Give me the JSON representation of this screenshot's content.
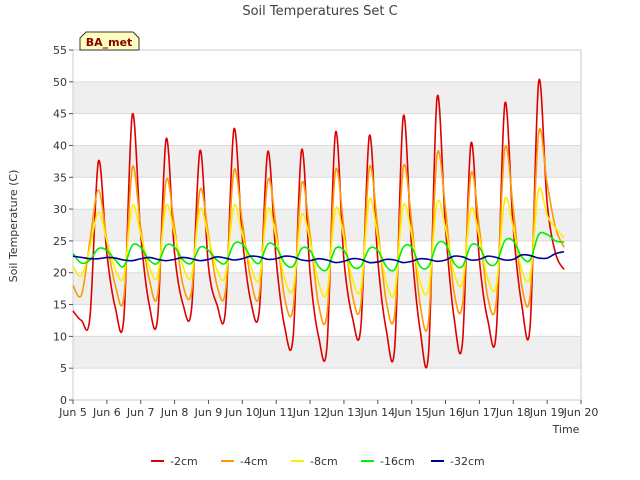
{
  "chart_data": {
    "type": "line",
    "title": "Soil Temperatures Set C",
    "badge": "BA_met",
    "xlabel": "Time",
    "ylabel": "Soil Temperature (C)",
    "xlim": [
      5,
      20
    ],
    "ylim": [
      0,
      55
    ],
    "x_ticks": [
      {
        "v": 5,
        "label": "Jun 5"
      },
      {
        "v": 6,
        "label": "Jun 6"
      },
      {
        "v": 7,
        "label": "Jun 7"
      },
      {
        "v": 8,
        "label": "Jun 8"
      },
      {
        "v": 9,
        "label": "Jun 9"
      },
      {
        "v": 10,
        "label": "Jun 10"
      },
      {
        "v": 11,
        "label": "Jun 11"
      },
      {
        "v": 12,
        "label": "Jun 12"
      },
      {
        "v": 13,
        "label": "Jun 13"
      },
      {
        "v": 14,
        "label": "Jun 14"
      },
      {
        "v": 15,
        "label": "Jun 15"
      },
      {
        "v": 16,
        "label": "Jun 16"
      },
      {
        "v": 17,
        "label": "Jun 17"
      },
      {
        "v": 18,
        "label": "Jun 18"
      },
      {
        "v": 19,
        "label": "Jun 19"
      },
      {
        "v": 20,
        "label": "Jun 20"
      }
    ],
    "y_ticks": [
      0,
      5,
      10,
      15,
      20,
      25,
      30,
      35,
      40,
      45,
      50,
      55
    ],
    "grid": true,
    "legend_position": "bottom",
    "x": [
      5.0,
      5.25,
      5.5,
      5.75,
      6.0,
      6.25,
      6.5,
      6.75,
      7.0,
      7.25,
      7.5,
      7.75,
      8.0,
      8.25,
      8.5,
      8.75,
      9.0,
      9.25,
      9.5,
      9.75,
      10.0,
      10.25,
      10.5,
      10.75,
      11.0,
      11.25,
      11.5,
      11.75,
      12.0,
      12.25,
      12.5,
      12.75,
      13.0,
      13.25,
      13.5,
      13.75,
      14.0,
      14.25,
      14.5,
      14.75,
      15.0,
      15.25,
      15.5,
      15.75,
      16.0,
      16.25,
      16.5,
      16.75,
      17.0,
      17.25,
      17.5,
      17.75,
      18.0,
      18.25,
      18.5,
      18.75,
      19.0,
      19.25,
      19.5
    ],
    "series": [
      {
        "name": "-2cm",
        "color": "#dd0000",
        "values": [
          14.0,
          12.5,
          13.0,
          37.5,
          23.0,
          14.5,
          12.8,
          44.8,
          26.0,
          15.0,
          13.0,
          41.0,
          23.0,
          15.0,
          14.3,
          39.2,
          21.0,
          15.0,
          14.0,
          42.5,
          25.5,
          15.5,
          14.0,
          39.0,
          22.0,
          11.5,
          9.9,
          39.3,
          20.0,
          10.0,
          8.5,
          42.0,
          22.0,
          13.0,
          11.5,
          41.5,
          22.0,
          11.0,
          8.3,
          44.5,
          24.0,
          11.0,
          7.5,
          47.5,
          27.0,
          13.0,
          9.0,
          40.3,
          22.0,
          12.5,
          10.8,
          46.5,
          27.0,
          15.0,
          11.8,
          50.0,
          31.0,
          23.0,
          20.5
        ]
      },
      {
        "name": "-4cm",
        "color": "#ff9900",
        "values": [
          18.0,
          16.5,
          25.0,
          33.0,
          25.0,
          18.0,
          16.0,
          36.5,
          27.0,
          19.0,
          16.5,
          34.5,
          27.0,
          18.0,
          17.0,
          33.0,
          26.0,
          18.0,
          17.0,
          36.0,
          28.0,
          19.0,
          16.5,
          34.5,
          27.0,
          16.0,
          14.5,
          34.0,
          26.0,
          15.0,
          13.5,
          36.0,
          27.0,
          16.5,
          15.0,
          36.5,
          27.0,
          15.5,
          13.5,
          36.5,
          28.0,
          15.0,
          12.5,
          38.5,
          30.0,
          17.0,
          15.0,
          35.5,
          27.0,
          16.0,
          15.5,
          39.5,
          30.0,
          18.0,
          16.5,
          42.0,
          34.0,
          27.0,
          24.0
        ]
      },
      {
        "name": "-8cm",
        "color": "#ffee00",
        "values": [
          21.0,
          19.5,
          24.0,
          29.5,
          25.0,
          20.5,
          19.5,
          30.5,
          26.0,
          21.0,
          19.5,
          30.5,
          26.0,
          21.0,
          19.5,
          30.0,
          25.5,
          20.5,
          19.5,
          30.5,
          26.0,
          21.0,
          19.0,
          30.0,
          25.5,
          19.0,
          17.5,
          29.0,
          25.0,
          18.5,
          17.0,
          30.0,
          25.5,
          19.0,
          17.5,
          31.5,
          25.5,
          18.5,
          17.0,
          30.5,
          26.0,
          18.5,
          17.5,
          31.0,
          27.0,
          20.0,
          18.5,
          30.0,
          25.5,
          19.0,
          18.0,
          31.5,
          27.0,
          20.5,
          19.5,
          33.0,
          29.0,
          27.0,
          25.5
        ]
      },
      {
        "name": "-16cm",
        "color": "#00ee00",
        "values": [
          23.0,
          21.5,
          22.0,
          23.8,
          23.5,
          22.0,
          21.0,
          24.3,
          24.0,
          22.0,
          21.5,
          24.3,
          24.0,
          22.0,
          21.5,
          24.0,
          23.5,
          22.0,
          21.5,
          24.5,
          24.5,
          22.5,
          21.5,
          24.5,
          24.0,
          21.5,
          21.0,
          23.8,
          23.5,
          21.0,
          20.5,
          23.8,
          23.5,
          21.0,
          21.0,
          23.8,
          23.5,
          21.0,
          20.5,
          24.0,
          24.0,
          21.0,
          21.0,
          24.5,
          24.5,
          21.5,
          21.0,
          24.3,
          24.0,
          21.5,
          21.5,
          25.0,
          25.0,
          22.5,
          22.0,
          26.0,
          26.0,
          25.0,
          24.8
        ]
      },
      {
        "name": "-32cm",
        "color": "#000099",
        "values": [
          22.6,
          22.4,
          22.2,
          22.2,
          22.4,
          22.3,
          22.0,
          21.9,
          22.2,
          22.4,
          22.1,
          21.9,
          22.1,
          22.4,
          22.2,
          21.9,
          22.1,
          22.5,
          22.3,
          22.0,
          22.2,
          22.6,
          22.5,
          22.1,
          22.2,
          22.6,
          22.5,
          22.0,
          21.9,
          22.2,
          22.0,
          21.6,
          21.8,
          22.2,
          22.1,
          21.6,
          21.7,
          22.1,
          22.0,
          21.6,
          21.8,
          22.2,
          22.1,
          21.8,
          22.0,
          22.6,
          22.5,
          22.0,
          22.1,
          22.6,
          22.4,
          22.0,
          22.1,
          22.8,
          22.7,
          22.3,
          22.3,
          23.0,
          23.3
        ]
      }
    ]
  }
}
